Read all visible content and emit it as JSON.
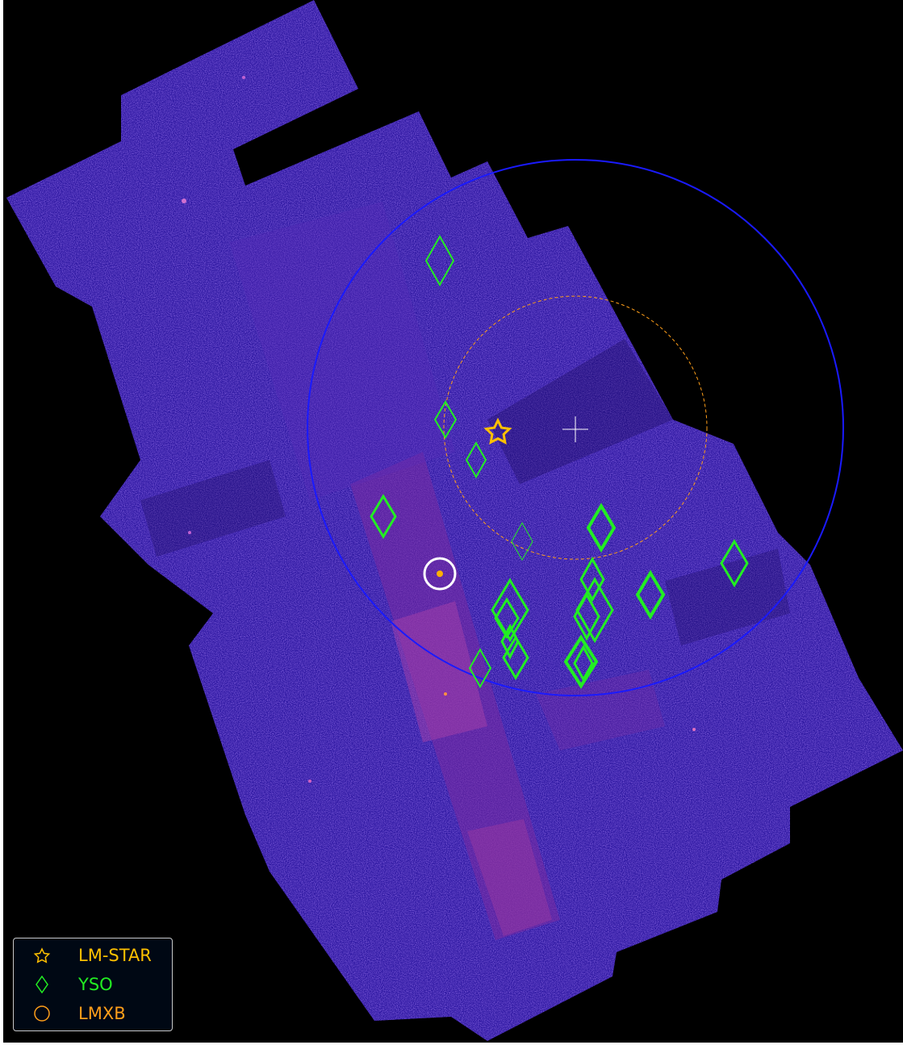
{
  "colors": {
    "background": "#000000",
    "field": "#3a1aa8",
    "outer_circle": "#1a1aff",
    "inner_circle": "#ff9f1a",
    "yso": "#22ee22",
    "star": "#ffc000",
    "lmxb_marker": "#ffffff",
    "legend_star": "#ffc000",
    "legend_yso": "#22ee22",
    "legend_lmxb": "#ff9f1a"
  },
  "legend": {
    "items": [
      {
        "label": "LM-STAR",
        "icon": "star-icon"
      },
      {
        "label": "YSO",
        "icon": "diamond-icon"
      },
      {
        "label": "LMXB",
        "icon": "circle-icon"
      }
    ]
  }
}
